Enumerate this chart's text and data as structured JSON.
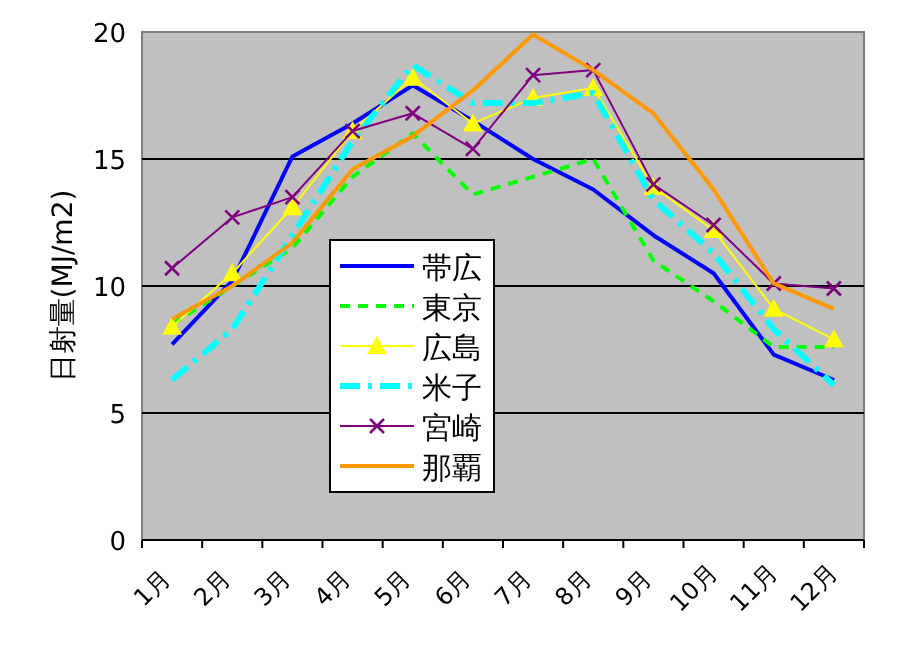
{
  "chart_data": {
    "type": "line",
    "ylabel": "日射量(MJ/m2)",
    "categories": [
      "1月",
      "2月",
      "3月",
      "4月",
      "5月",
      "6月",
      "7月",
      "8月",
      "9月",
      "10月",
      "11月",
      "12月"
    ],
    "ylim": [
      0,
      20
    ],
    "yticks": [
      0,
      5,
      10,
      15,
      20
    ],
    "grid": "y",
    "legend": "center left",
    "series": [
      {
        "name": "帯広",
        "color": "#0000ff",
        "line_style": "solid",
        "marker": "none",
        "values": [
          7.7,
          10.2,
          15.1,
          16.4,
          17.9,
          16.5,
          15.0,
          13.8,
          12.0,
          10.5,
          7.3,
          6.3
        ]
      },
      {
        "name": "東京",
        "color": "#00ff00",
        "line_style": "dotted",
        "marker": "none",
        "values": [
          8.5,
          10.0,
          11.5,
          14.3,
          16.0,
          13.6,
          14.3,
          15.0,
          11.0,
          9.4,
          7.6,
          7.6
        ]
      },
      {
        "name": "広島",
        "color": "#ffff00",
        "line_style": "solid",
        "marker": "triangle",
        "values": [
          8.4,
          10.5,
          13.1,
          16.1,
          18.2,
          16.4,
          17.4,
          17.8,
          13.9,
          12.2,
          9.1,
          7.9
        ]
      },
      {
        "name": "米子",
        "color": "#00ffff",
        "line_style": "dashed",
        "marker": "none",
        "values": [
          6.3,
          8.3,
          12.0,
          15.7,
          18.7,
          17.2,
          17.2,
          17.6,
          13.4,
          11.3,
          8.3,
          6.1
        ]
      },
      {
        "name": "宮崎",
        "color": "#800080",
        "line_style": "solid",
        "marker": "cross",
        "values": [
          10.7,
          12.7,
          13.5,
          16.1,
          16.8,
          15.4,
          18.3,
          18.5,
          14.0,
          12.4,
          10.1,
          9.9
        ]
      },
      {
        "name": "那覇",
        "color": "#ff9900",
        "line_style": "solid",
        "marker": "none",
        "values": [
          8.7,
          10.0,
          11.7,
          14.6,
          15.9,
          17.7,
          19.9,
          18.5,
          16.8,
          13.8,
          10.1,
          9.1
        ]
      }
    ]
  }
}
